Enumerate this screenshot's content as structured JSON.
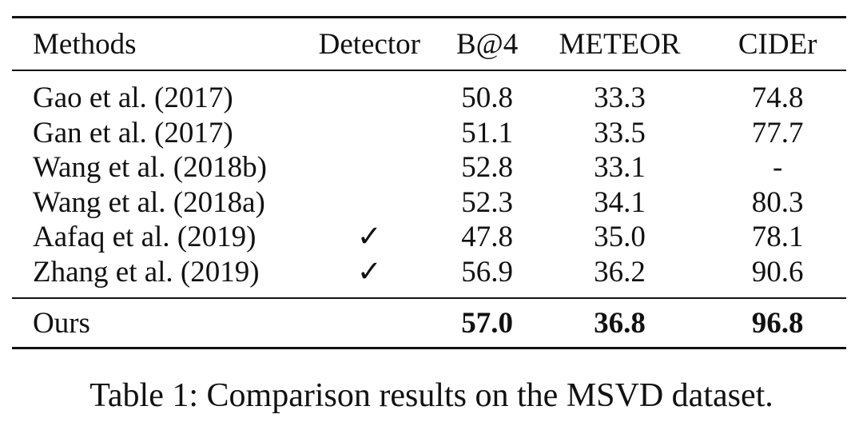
{
  "table": {
    "headers": [
      "Methods",
      "Detector",
      "B@4",
      "METEOR",
      "CIDEr"
    ],
    "rows": [
      {
        "method": "Gao et al. (2017)",
        "detector": "",
        "b4": "50.8",
        "meteor": "33.3",
        "cider": "74.8"
      },
      {
        "method": "Gan et al. (2017)",
        "detector": "",
        "b4": "51.1",
        "meteor": "33.5",
        "cider": "77.7"
      },
      {
        "method": "Wang et al. (2018b)",
        "detector": "",
        "b4": "52.8",
        "meteor": "33.1",
        "cider": "-"
      },
      {
        "method": "Wang et al. (2018a)",
        "detector": "",
        "b4": "52.3",
        "meteor": "34.1",
        "cider": "80.3"
      },
      {
        "method": "Aafaq et al. (2019)",
        "detector": "✓",
        "b4": "47.8",
        "meteor": "35.0",
        "cider": "78.1"
      },
      {
        "method": "Zhang et al. (2019)",
        "detector": "✓",
        "b4": "56.9",
        "meteor": "36.2",
        "cider": "90.6"
      }
    ],
    "ours": {
      "method": "Ours",
      "detector": "",
      "b4": "57.0",
      "meteor": "36.8",
      "cider": "96.8"
    }
  },
  "caption": "Table 1: Comparison results on the MSVD dataset."
}
